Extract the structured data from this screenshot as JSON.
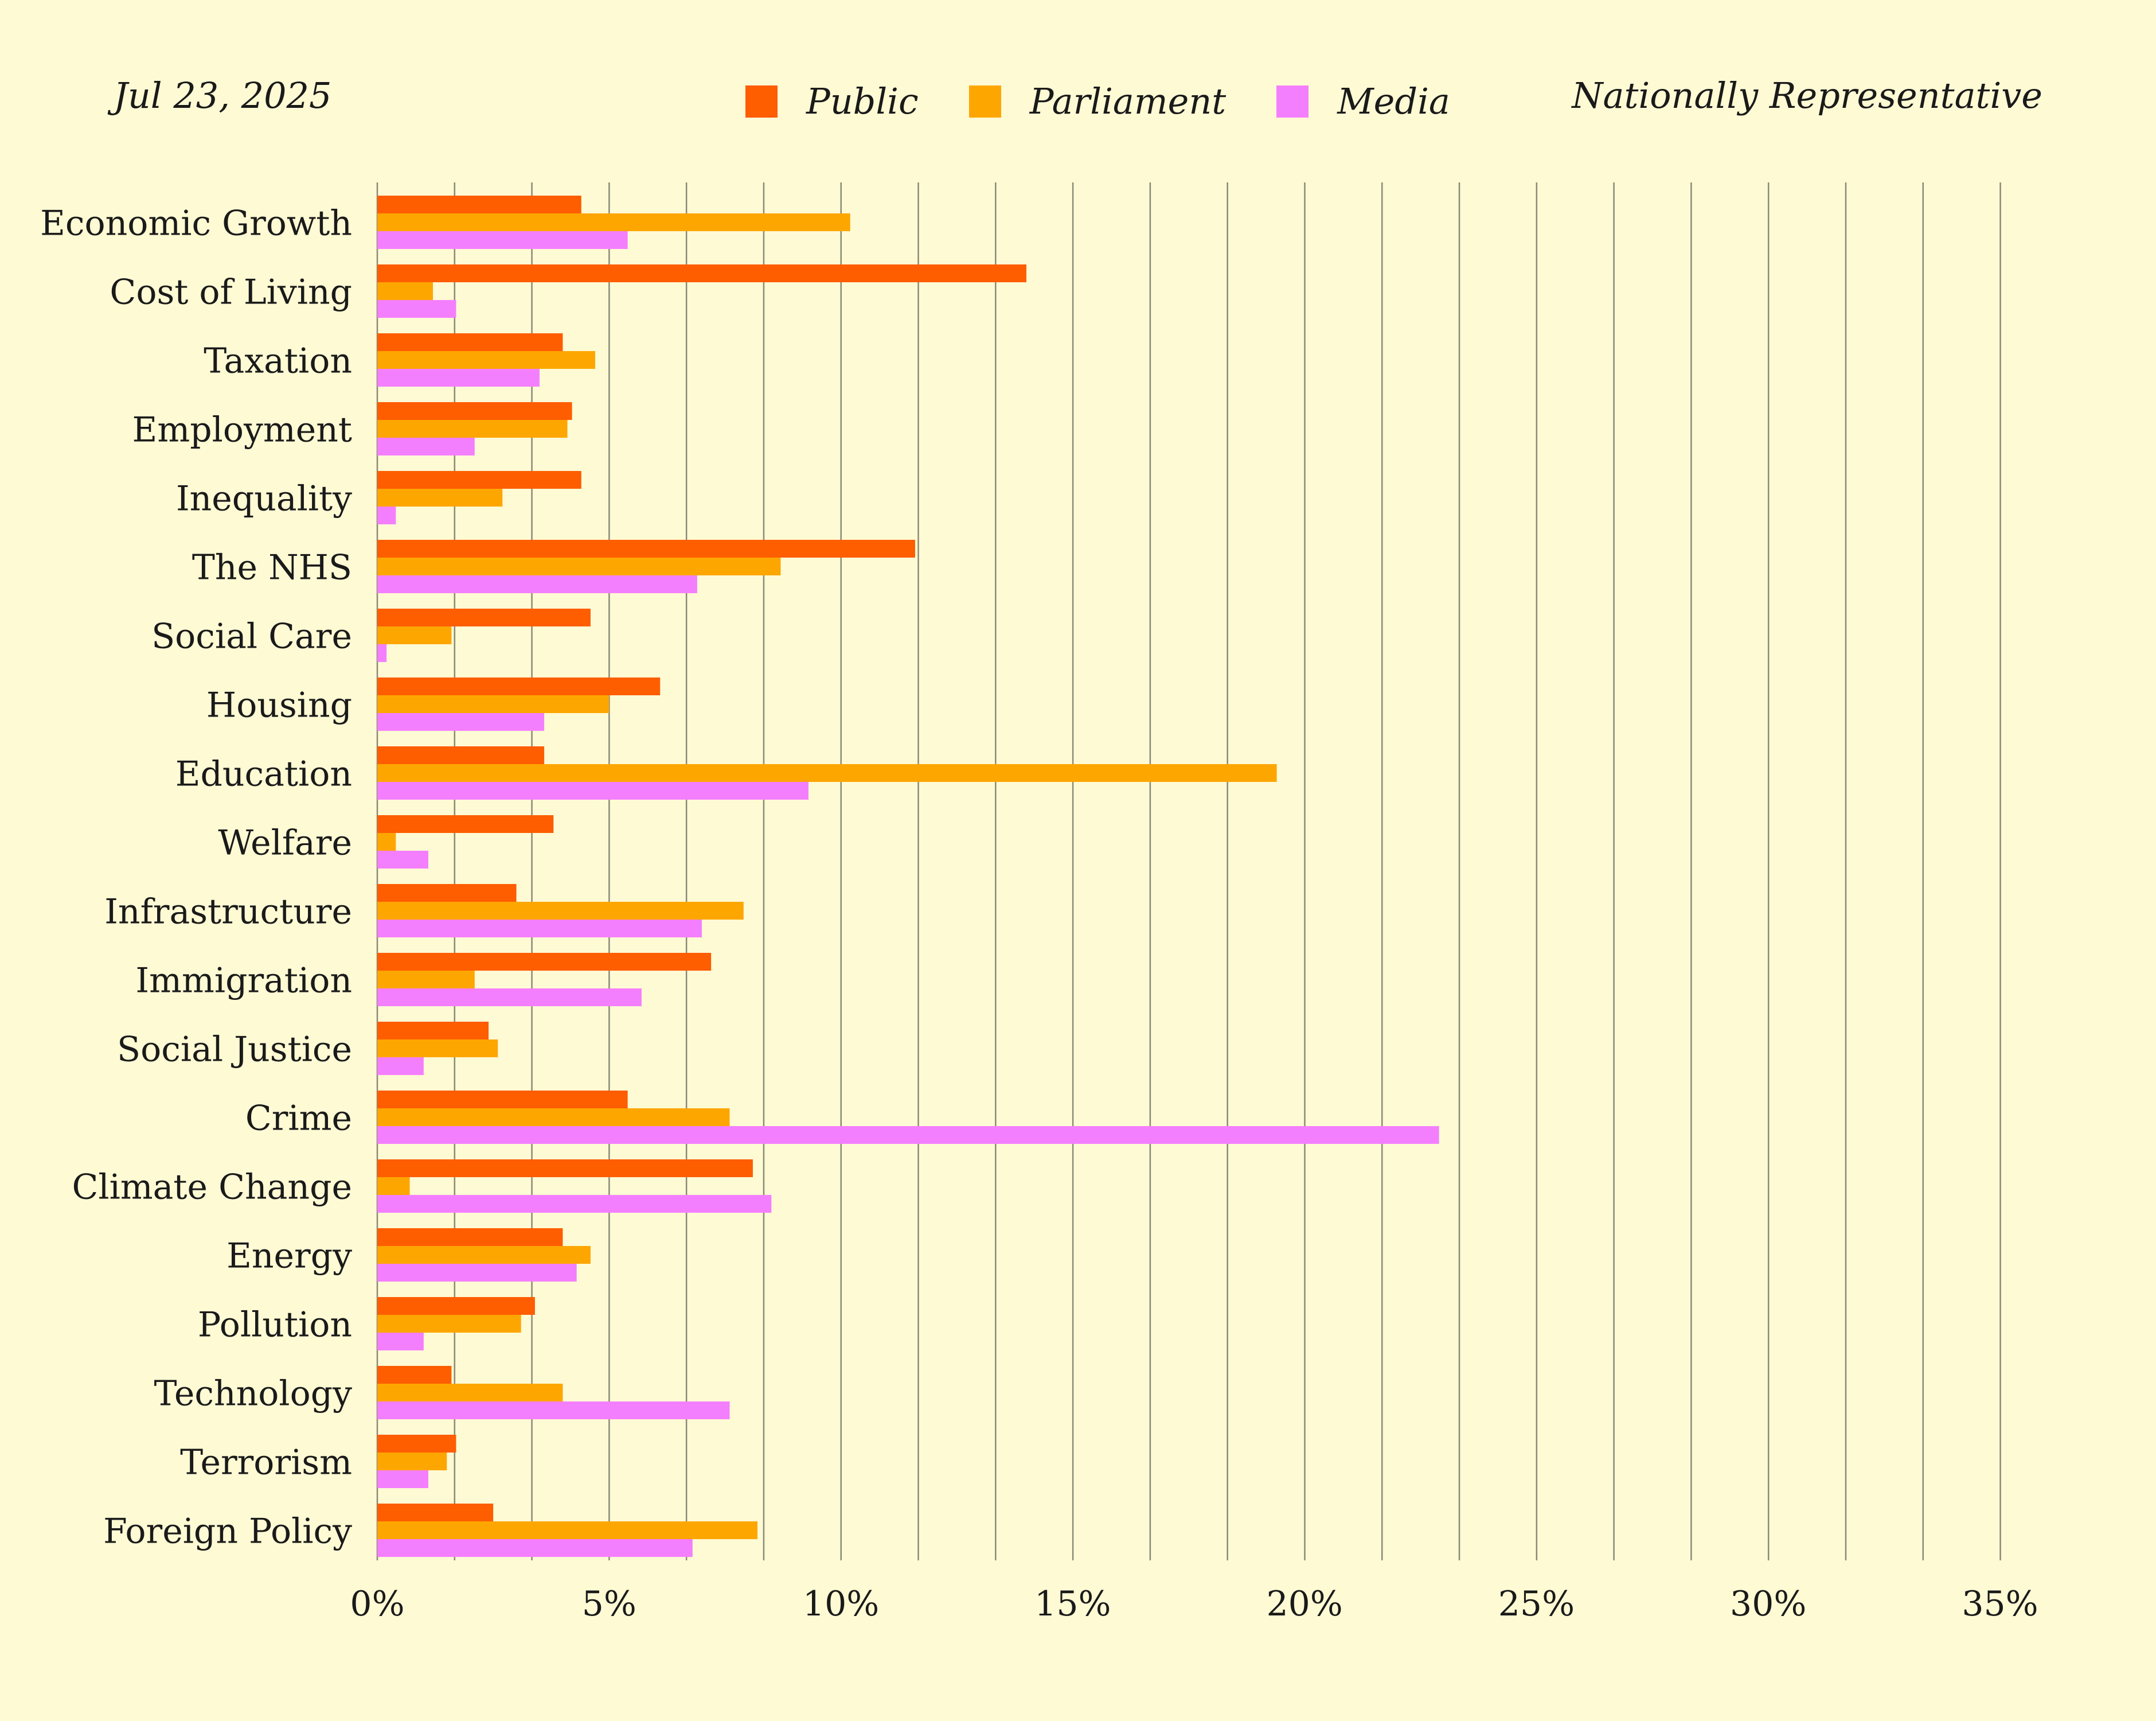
{
  "header": {
    "date": "Jul 23, 2025",
    "sample": "Nationally Representative"
  },
  "colors": {
    "background": "#fefad4",
    "gridline": "#8a8a78",
    "text": "#1a1a1a"
  },
  "chart_data": {
    "type": "bar",
    "orientation": "horizontal",
    "categories": [
      "Economic Growth",
      "Cost of Living",
      "Taxation",
      "Employment",
      "Inequality",
      "The NHS",
      "Social Care",
      "Housing",
      "Education",
      "Welfare",
      "Infrastructure",
      "Immigration",
      "Social Justice",
      "Crime",
      "Climate Change",
      "Energy",
      "Pollution",
      "Technology",
      "Terrorism",
      "Foreign Policy"
    ],
    "series": [
      {
        "name": "Public",
        "color": "#fe5d00",
        "values": [
          4.4,
          14.0,
          4.0,
          4.2,
          4.4,
          11.6,
          4.6,
          6.1,
          3.6,
          3.8,
          3.0,
          7.2,
          2.4,
          5.4,
          8.1,
          4.0,
          3.4,
          1.6,
          1.7,
          2.5
        ]
      },
      {
        "name": "Parliament",
        "color": "#fea600",
        "values": [
          10.2,
          1.2,
          4.7,
          4.1,
          2.7,
          8.7,
          1.6,
          5.0,
          19.4,
          0.4,
          7.9,
          2.1,
          2.6,
          7.6,
          0.7,
          4.6,
          3.1,
          4.0,
          1.5,
          8.2
        ]
      },
      {
        "name": "Media",
        "color": "#f47ffe",
        "values": [
          5.4,
          1.7,
          3.5,
          2.1,
          0.4,
          6.9,
          0.2,
          3.6,
          9.3,
          1.1,
          7.0,
          5.7,
          1.0,
          22.9,
          8.5,
          4.3,
          1.0,
          7.6,
          1.1,
          6.8
        ]
      }
    ],
    "xlim": [
      0,
      35
    ],
    "xticks": [
      {
        "value": 0,
        "label": "0%"
      },
      {
        "value": 5,
        "label": "5%"
      },
      {
        "value": 10,
        "label": "10%"
      },
      {
        "value": 15,
        "label": "15%"
      },
      {
        "value": 20,
        "label": "20%"
      },
      {
        "value": 25,
        "label": "25%"
      },
      {
        "value": 30,
        "label": "30%"
      },
      {
        "value": 35,
        "label": "35%"
      }
    ],
    "gridline_step": 1.667,
    "grid": true,
    "legend_position": "top-center"
  }
}
